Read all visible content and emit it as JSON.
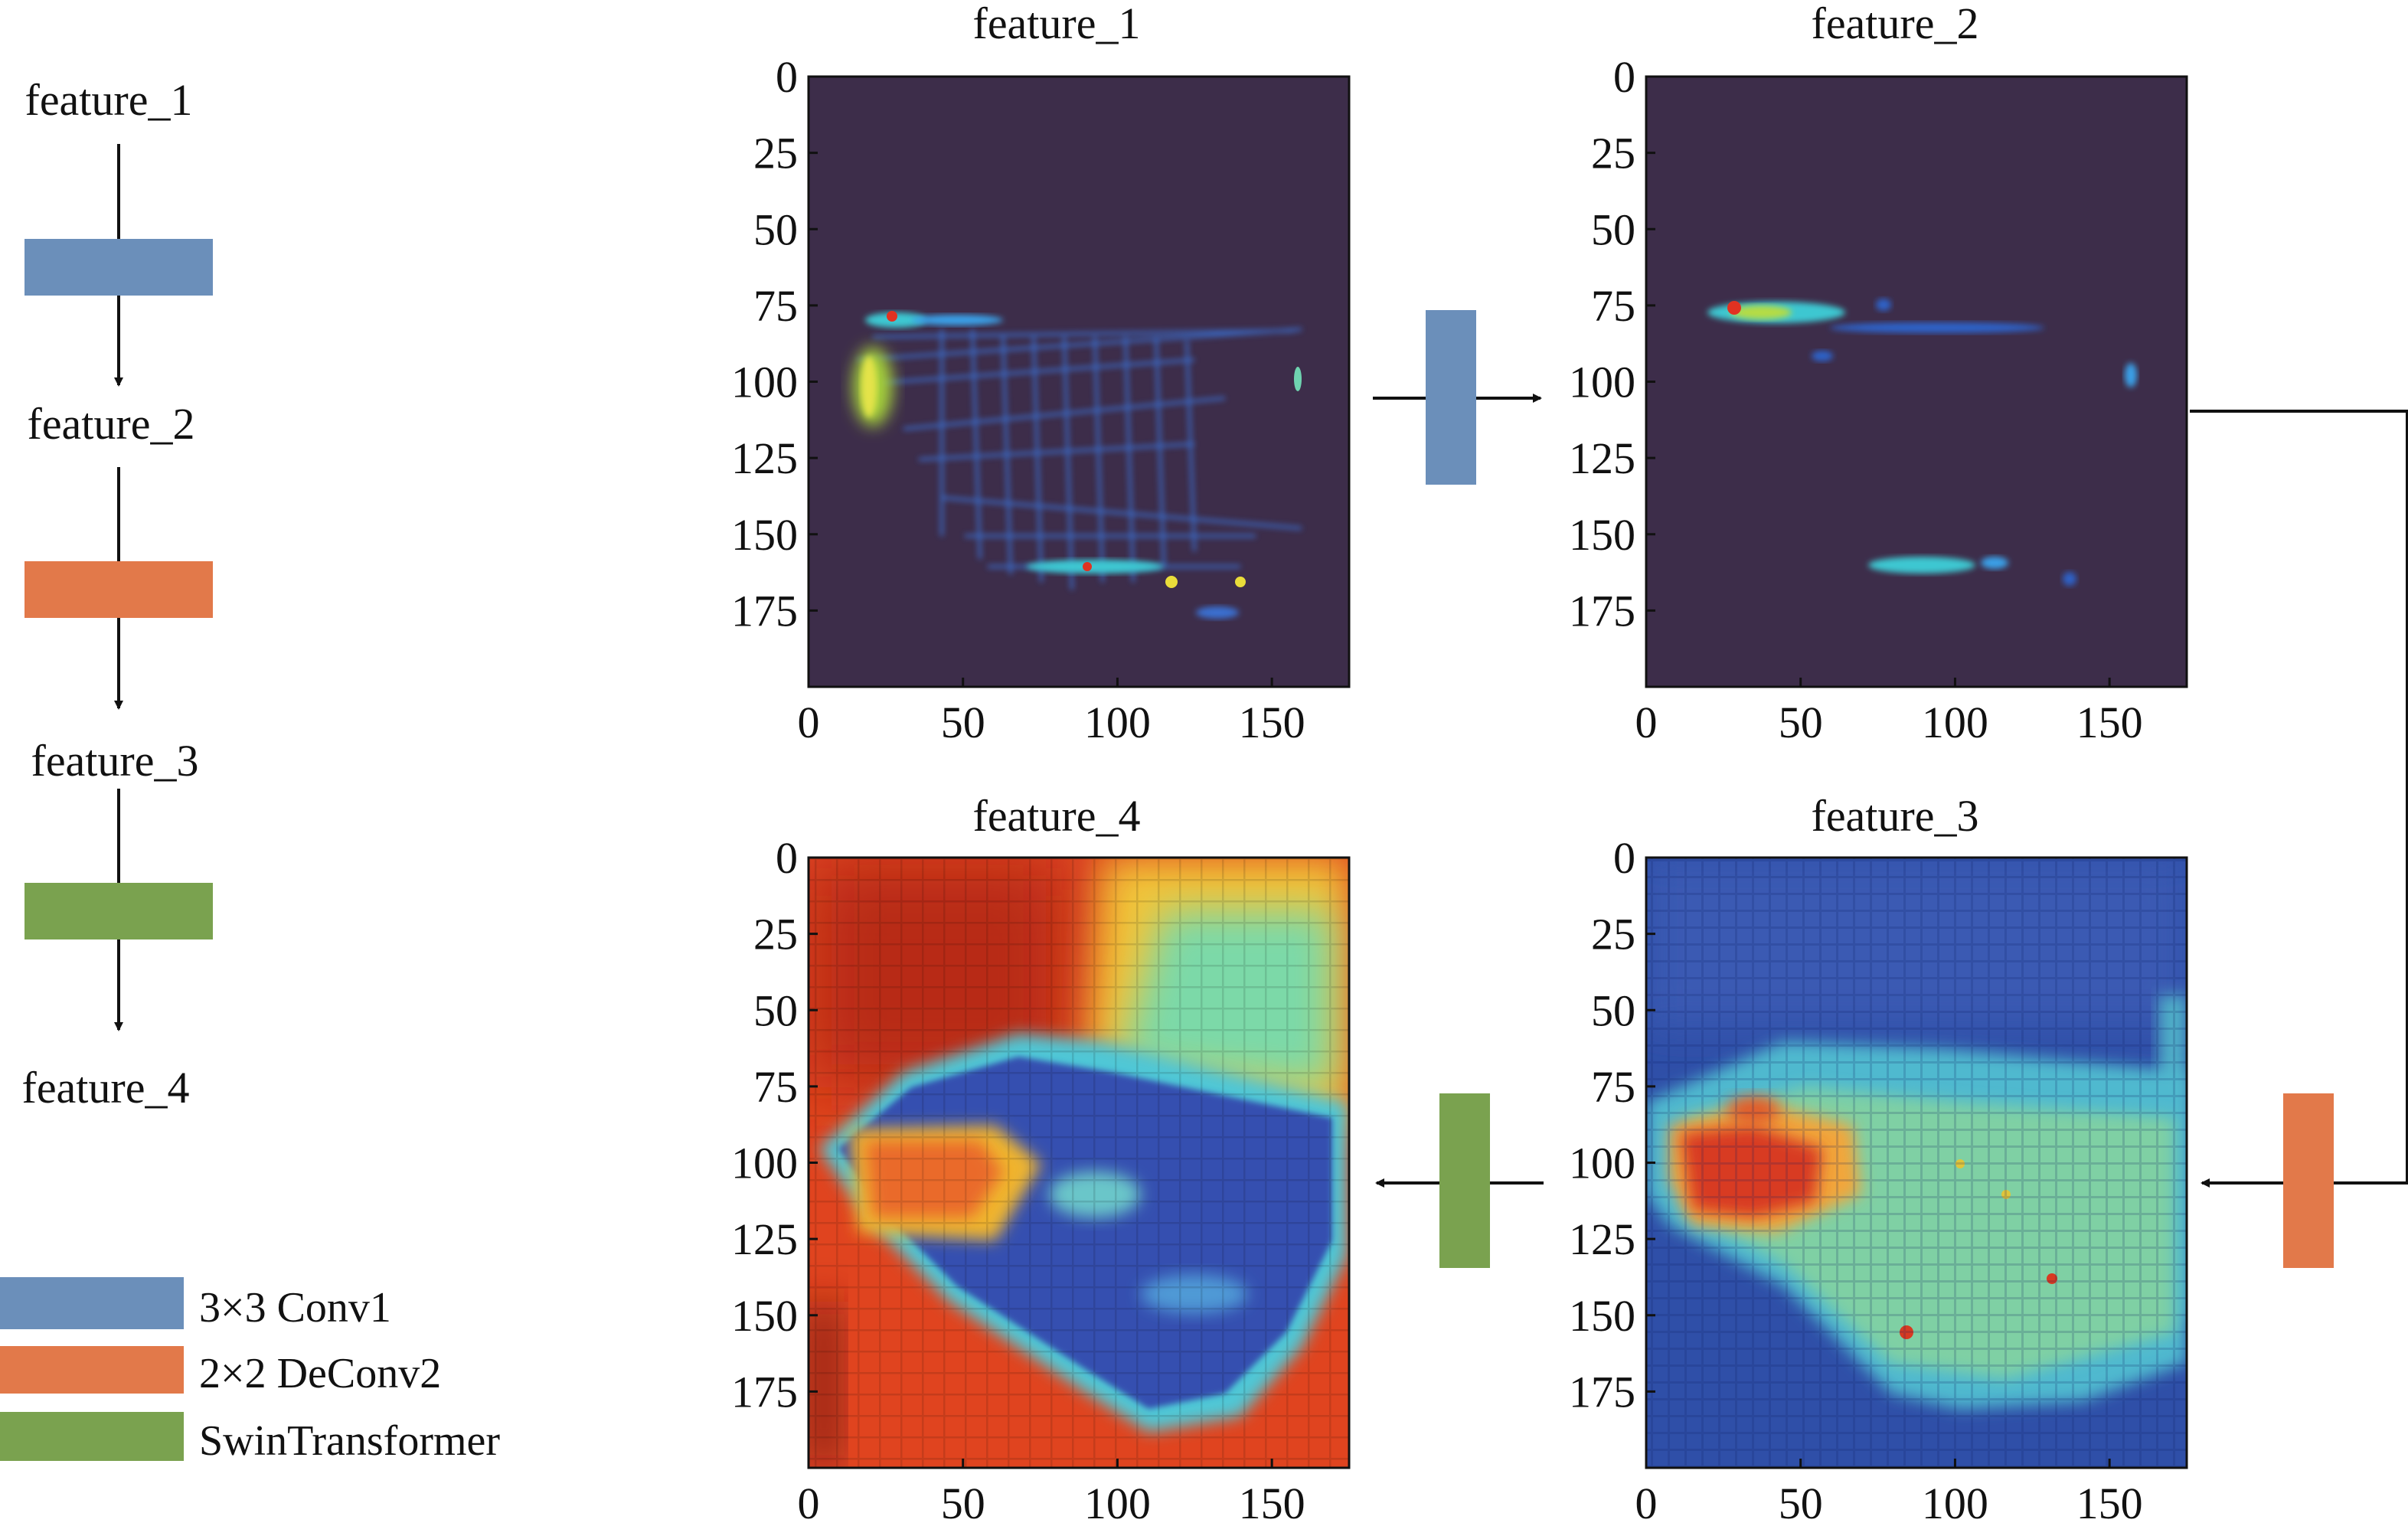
{
  "flow": {
    "labels": [
      "feature_1",
      "feature_2",
      "feature_3",
      "feature_4"
    ],
    "blocks": [
      "conv",
      "deconv",
      "swin"
    ]
  },
  "legend": {
    "items": [
      {
        "key": "conv",
        "label": "3×3 Conv1",
        "color": "#6b8fba"
      },
      {
        "key": "deconv",
        "label": "2×2 DeConv2",
        "color": "#e2794a"
      },
      {
        "key": "swin",
        "label": "SwinTransformer",
        "color": "#7aa24f"
      }
    ]
  },
  "panels": [
    {
      "title": "feature_1",
      "style": "sparse_lidar"
    },
    {
      "title": "feature_2",
      "style": "sparse_blobs"
    },
    {
      "title": "feature_4",
      "style": "dense_red"
    },
    {
      "title": "feature_3",
      "style": "dense_blue"
    }
  ],
  "axes": {
    "x_ticks": [
      "0",
      "50",
      "100",
      "150"
    ],
    "y_ticks": [
      "0",
      "25",
      "50",
      "75",
      "100",
      "125",
      "150",
      "175"
    ],
    "x_range": [
      0,
      175
    ],
    "y_range": [
      0,
      200
    ]
  },
  "connectors": [
    {
      "from": "feature_1",
      "to": "feature_2",
      "block": "conv"
    },
    {
      "from": "feature_2",
      "to": "feature_3",
      "block": "deconv"
    },
    {
      "from": "feature_3",
      "to": "feature_4",
      "block": "swin"
    }
  ],
  "colors": {
    "background_dark": "#3d2d4a",
    "jet_blue": "#2f4fa8",
    "jet_red": "#d83a22",
    "line": "#111111"
  }
}
